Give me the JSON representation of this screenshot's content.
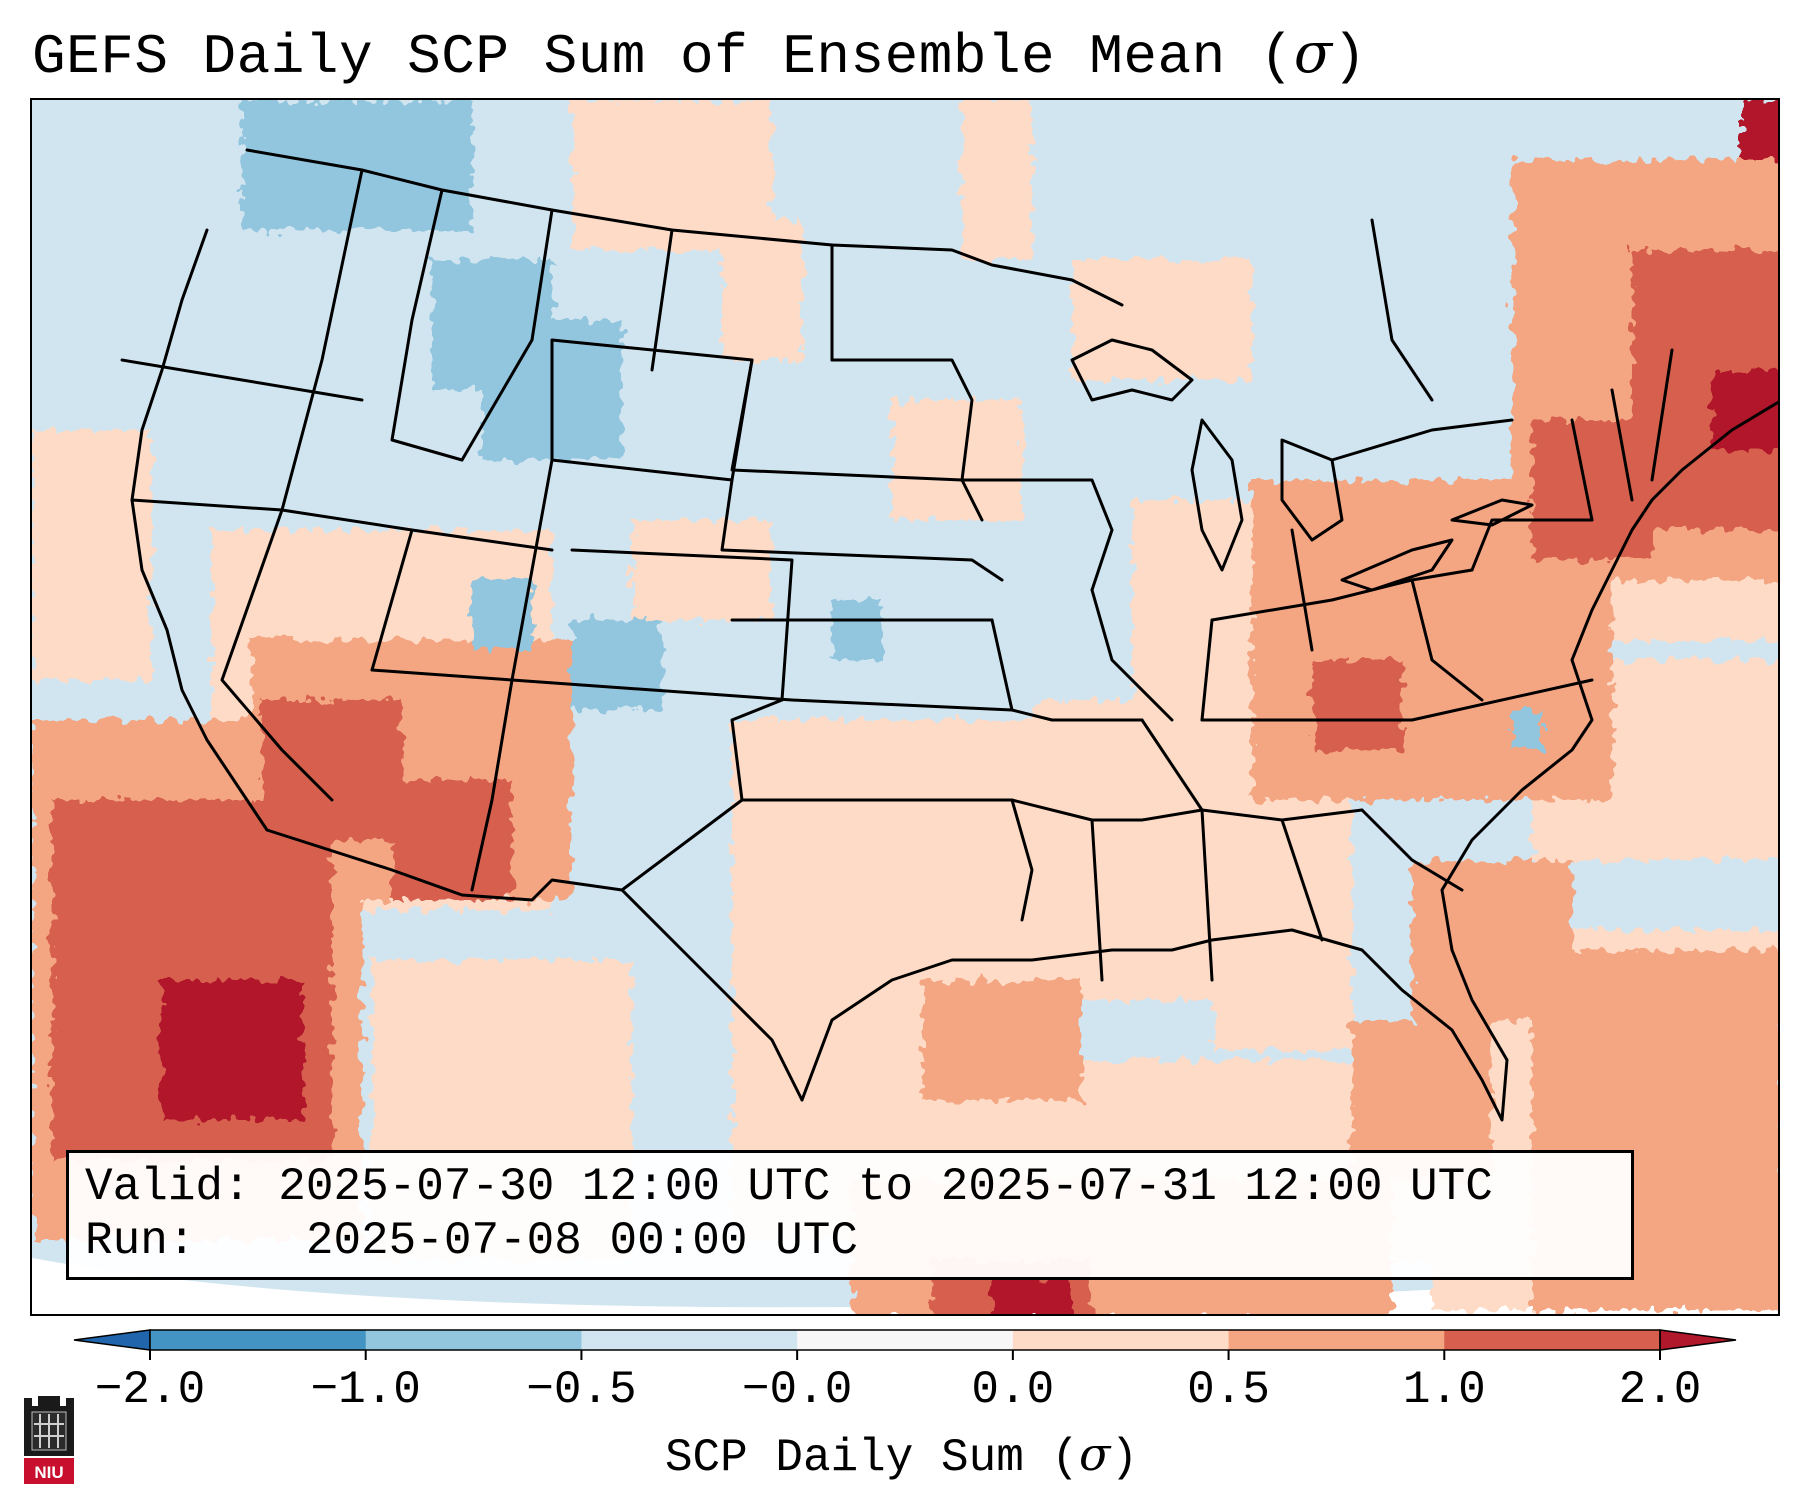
{
  "title": {
    "prefix": "GEFS Daily SCP Sum of Ensemble Mean (",
    "symbol": "σ",
    "suffix": ")"
  },
  "info_box": {
    "valid_label": "Valid:",
    "valid_text": "2025-07-30 12:00 UTC to 2025-07-31 12:00 UTC",
    "run_label": "Run:",
    "run_text": "2025-07-08 00:00 UTC"
  },
  "colorbar": {
    "label_prefix": "SCP Daily Sum (",
    "label_symbol": "σ",
    "label_suffix": ")",
    "tick_labels": [
      "−2.0",
      "−1.0",
      "−0.5",
      "−0.0",
      "0.0",
      "0.5",
      "1.0",
      "2.0"
    ],
    "colors": [
      "#2166ac",
      "#4393c3",
      "#92c5de",
      "#d1e5f0",
      "#f7f7f7",
      "#fddbc7",
      "#f4a582",
      "#d6604d",
      "#b2182b"
    ],
    "extend": "both"
  },
  "logo": {
    "text": "NIU",
    "color": "#c8102e"
  },
  "map": {
    "projection": "Lambert Conformal, CONUS domain",
    "ocean_base_color": "#d1e5f0",
    "anomaly_regions": [
      {
        "name": "Southwest / Arizona",
        "category": "0.5 to 1.0"
      },
      {
        "name": "Baja California / Gulf of California",
        "category": "1.0 to 2.0"
      },
      {
        "name": "Ohio Valley",
        "category": "0.5 to 1.0"
      },
      {
        "name": "New England",
        "category": "1.0 to 2.0"
      },
      {
        "name": "Gulf of Mexico",
        "category": "0.0 to 0.5"
      },
      {
        "name": "Western Atlantic",
        "category": "0.5 to 1.0"
      },
      {
        "name": "Northern Rockies",
        "category": "-1.0 to -0.5"
      },
      {
        "name": "Great Plains",
        "category": "-0.5 to 0.0"
      }
    ]
  }
}
